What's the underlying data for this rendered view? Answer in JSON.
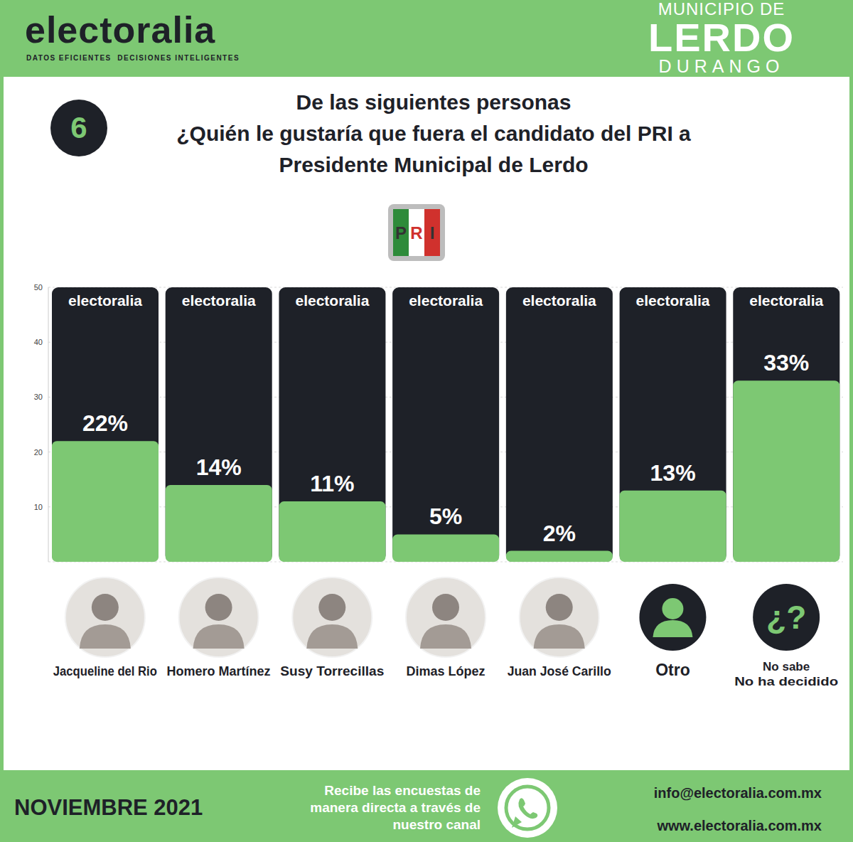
{
  "page": {
    "brand": "electoralia",
    "tagline": "DATOS EFICIENTES  DECISIONES INTELIGENTES",
    "region_top": "MUNICIPIO DE",
    "region_main": "LERDO",
    "region_bottom": "DURANGO",
    "question_number": "6",
    "party": "PRI",
    "unknown_icon": "¿?",
    "date": "NOVIEMBRE 2021",
    "channel_text": "Recibe las encuestas de\nmanera directa a través de\nnuestro canal",
    "email": "info@electoralia.com.mx",
    "website": "www.electoralia.com.mx"
  },
  "chart_data": {
    "type": "bar",
    "title": "De las siguientes personas\n¿Quién le gustaría que fuera el candidato del PRI a\nPresidente Municipal de Lerdo",
    "categories": [
      "Jacqueline del Rio",
      "Homero Martínez",
      "Susy Torrecillas",
      "Dimas López",
      "Juan José Carillo",
      "Otro",
      "No sabe\nNo ha decidido"
    ],
    "values": [
      22,
      14,
      11,
      5,
      2,
      13,
      33
    ],
    "value_labels": [
      "22%",
      "14%",
      "11%",
      "5%",
      "2%",
      "13%",
      "33%"
    ],
    "color": "#7dc873",
    "ylim": [
      0,
      50
    ],
    "yticks": [
      10,
      20,
      30,
      40,
      50
    ],
    "grid": true,
    "data_labels": true
  }
}
